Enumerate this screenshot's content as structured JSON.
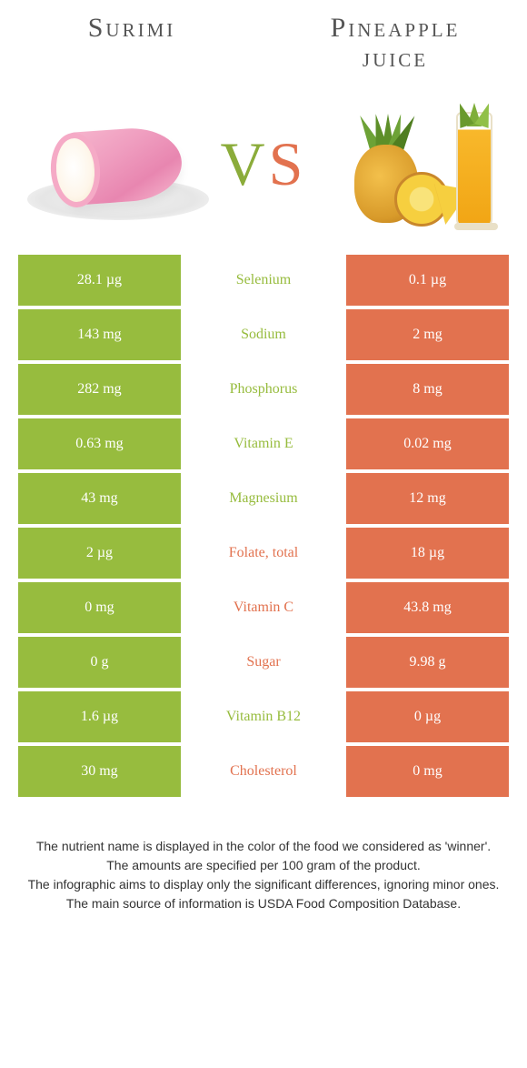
{
  "header": {
    "left": "Surimi",
    "right_line1": "Pineapple",
    "right_line2": "juice"
  },
  "vs": {
    "v": "V",
    "s": "S"
  },
  "colors": {
    "green": "#97bc3e",
    "orange": "#e2724f"
  },
  "rows": [
    {
      "left": "28.1 µg",
      "name": "Selenium",
      "right": "0.1 µg",
      "winner": "left"
    },
    {
      "left": "143 mg",
      "name": "Sodium",
      "right": "2 mg",
      "winner": "left"
    },
    {
      "left": "282 mg",
      "name": "Phosphorus",
      "right": "8 mg",
      "winner": "left"
    },
    {
      "left": "0.63 mg",
      "name": "Vitamin E",
      "right": "0.02 mg",
      "winner": "left"
    },
    {
      "left": "43 mg",
      "name": "Magnesium",
      "right": "12 mg",
      "winner": "left"
    },
    {
      "left": "2 µg",
      "name": "Folate, total",
      "right": "18 µg",
      "winner": "right"
    },
    {
      "left": "0 mg",
      "name": "Vitamin C",
      "right": "43.8 mg",
      "winner": "right"
    },
    {
      "left": "0 g",
      "name": "Sugar",
      "right": "9.98 g",
      "winner": "right"
    },
    {
      "left": "1.6 µg",
      "name": "Vitamin B12",
      "right": "0 µg",
      "winner": "left"
    },
    {
      "left": "30 mg",
      "name": "Cholesterol",
      "right": "0 mg",
      "winner": "right"
    }
  ],
  "footer": {
    "l1": "The nutrient name is displayed in the color of the food we considered as 'winner'.",
    "l2": "The amounts are specified per 100 gram of the product.",
    "l3": "The infographic aims to display only the significant differences, ignoring minor ones.",
    "l4": "The main source of information is USDA Food Composition Database."
  }
}
